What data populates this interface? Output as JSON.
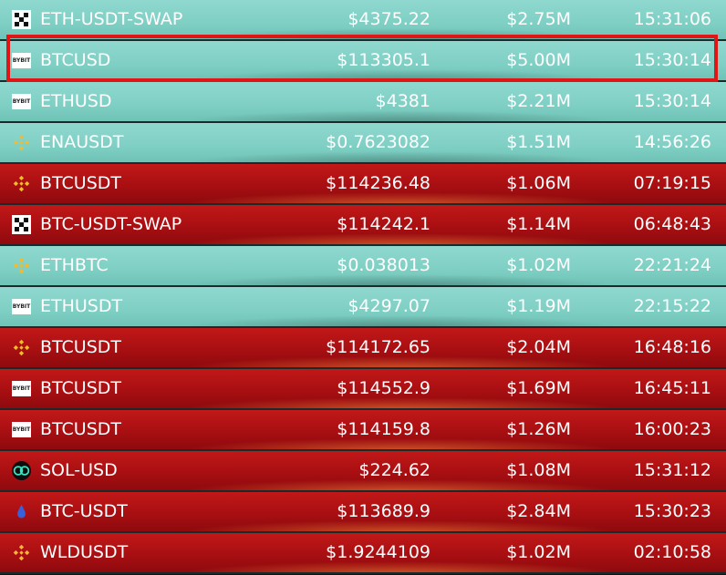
{
  "rows": [
    {
      "exchange": "okx",
      "symbol": "ETH-USDT-SWAP",
      "price": "$4375.22",
      "volume": "$2.75M",
      "time": "15:31:06",
      "theme": "teal"
    },
    {
      "exchange": "bybit",
      "symbol": "BTCUSD",
      "price": "$113305.1",
      "volume": "$5.00M",
      "time": "15:30:14",
      "theme": "teal"
    },
    {
      "exchange": "bybit",
      "symbol": "ETHUSD",
      "price": "$4381",
      "volume": "$2.21M",
      "time": "15:30:14",
      "theme": "teal"
    },
    {
      "exchange": "binance",
      "symbol": "ENAUSDT",
      "price": "$0.7623082",
      "volume": "$1.51M",
      "time": "14:56:26",
      "theme": "teal"
    },
    {
      "exchange": "binance",
      "symbol": "BTCUSDT",
      "price": "$114236.48",
      "volume": "$1.06M",
      "time": "07:19:15",
      "theme": "red"
    },
    {
      "exchange": "okx",
      "symbol": "BTC-USDT-SWAP",
      "price": "$114242.1",
      "volume": "$1.14M",
      "time": "06:48:43",
      "theme": "red"
    },
    {
      "exchange": "binance",
      "symbol": "ETHBTC",
      "price": "$0.038013",
      "volume": "$1.02M",
      "time": "22:21:24",
      "theme": "teal"
    },
    {
      "exchange": "bybit",
      "symbol": "ETHUSDT",
      "price": "$4297.07",
      "volume": "$1.19M",
      "time": "22:15:22",
      "theme": "teal"
    },
    {
      "exchange": "binance",
      "symbol": "BTCUSDT",
      "price": "$114172.65",
      "volume": "$2.04M",
      "time": "16:48:16",
      "theme": "red"
    },
    {
      "exchange": "bybit",
      "symbol": "BTCUSDT",
      "price": "$114552.9",
      "volume": "$1.69M",
      "time": "16:45:11",
      "theme": "red"
    },
    {
      "exchange": "bybit",
      "symbol": "BTCUSDT",
      "price": "$114159.8",
      "volume": "$1.26M",
      "time": "16:00:23",
      "theme": "red"
    },
    {
      "exchange": "sol",
      "symbol": "SOL-USD",
      "price": "$224.62",
      "volume": "$1.08M",
      "time": "15:31:12",
      "theme": "red"
    },
    {
      "exchange": "drop",
      "symbol": "BTC-USDT",
      "price": "$113689.9",
      "volume": "$2.84M",
      "time": "15:30:23",
      "theme": "red"
    },
    {
      "exchange": "binance",
      "symbol": "WLDUSDT",
      "price": "$1.9244109",
      "volume": "$1.02M",
      "time": "02:10:58",
      "theme": "red"
    }
  ],
  "bybit_logo_text": "BYBIT",
  "colors": {
    "teal": "#8fd8cf",
    "red": "#b01215",
    "highlight": "#e01616",
    "binance": "#f3ba2f"
  },
  "icons": {
    "okx": "okx-logo-icon",
    "bybit": "bybit-logo-icon",
    "binance": "binance-logo-icon",
    "sol": "sol-logo-icon",
    "drop": "drop-logo-icon"
  }
}
